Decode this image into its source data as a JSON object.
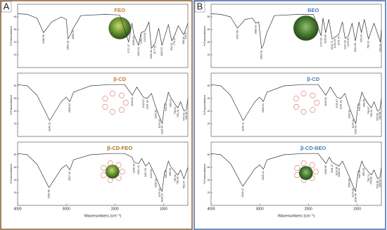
{
  "figure": {
    "panels": [
      {
        "letter": "A",
        "border_color": "#8b5a2b"
      },
      {
        "letter": "B",
        "border_color": "#3f6aa8"
      }
    ]
  },
  "chart_data": [
    {
      "type": "line",
      "title": "FEO",
      "title_color": "#c87a2a",
      "ylabel": "%Transmittance",
      "color": "#333333",
      "xlim": [
        4000,
        500
      ],
      "ylim": [
        0,
        100
      ],
      "yticks": [
        20,
        40,
        60,
        80
      ],
      "x": [
        4000,
        3800,
        3600,
        3466.5,
        3300,
        3100,
        3000,
        2963,
        2925,
        2856,
        2700,
        2200,
        1900,
        1717,
        1650,
        1609,
        1513,
        1462,
        1378,
        1300,
        1250,
        1177,
        1100,
        1032,
        900,
        832,
        775,
        700,
        586,
        545,
        500
      ],
      "values": [
        85,
        84,
        78,
        55,
        72,
        80,
        76,
        45,
        50,
        62,
        82,
        84,
        83,
        40,
        70,
        52,
        35,
        55,
        58,
        72,
        30,
        38,
        62,
        35,
        68,
        42,
        50,
        66,
        52,
        60,
        70
      ],
      "peaks": [
        {
          "value": 3466.5,
          "label": "3466.50"
        },
        {
          "value": 2963.18,
          "label": "2963.18"
        },
        {
          "value": 2856.12,
          "label": "2856.12"
        },
        {
          "value": 1717.37,
          "label": "1717.37"
        },
        {
          "value": 1609.63,
          "label": "1609.63"
        },
        {
          "value": 1513.34,
          "label": "1513.34"
        },
        {
          "value": 1462.43,
          "label": "1462.43"
        },
        {
          "value": 1378.5,
          "label": "1378.50"
        },
        {
          "value": 1250.96,
          "label": "1250.96"
        },
        {
          "value": 1177.02,
          "label": "1177.02"
        },
        {
          "value": 1032.57,
          "label": "1032.57"
        },
        {
          "value": 832.22,
          "label": "832.22"
        },
        {
          "value": 775.23,
          "label": "775.23"
        },
        {
          "value": 586.84,
          "label": "586.84"
        },
        {
          "value": 545.87,
          "label": "545.87"
        }
      ]
    },
    {
      "type": "line",
      "title": "β-CD",
      "title_color": "#c87a2a",
      "ylabel": "%Transmittance",
      "color": "#333333",
      "xlim": [
        4000,
        500
      ],
      "ylim": [
        0,
        100
      ],
      "yticks": [
        20,
        40,
        60,
        80
      ],
      "x": [
        4000,
        3800,
        3600,
        3340.11,
        3100,
        3000,
        2926,
        2850,
        2500,
        2100,
        1800,
        1640.84,
        1550,
        1413.87,
        1334.18,
        1250,
        1153.91,
        1079.25,
        1025.97,
        980,
        945.5,
        900,
        855.67,
        756.67,
        705.26,
        650,
        579.49,
        530.59,
        500
      ],
      "values": [
        82,
        80,
        65,
        25,
        55,
        62,
        55,
        70,
        80,
        82,
        82,
        65,
        78,
        62,
        60,
        68,
        45,
        30,
        20,
        50,
        55,
        70,
        62,
        50,
        45,
        55,
        40,
        42,
        60
      ],
      "peaks": [
        {
          "value": 3340.11,
          "label": "3340.11"
        },
        {
          "value": 2926.04,
          "label": "2926.04"
        },
        {
          "value": 1640.84,
          "label": "1640.84"
        },
        {
          "value": 1413.87,
          "label": "1413.87"
        },
        {
          "value": 1334.18,
          "label": "1334.18"
        },
        {
          "value": 1153.91,
          "label": "1153.91"
        },
        {
          "value": 1079.25,
          "label": "1079.25"
        },
        {
          "value": 1025.97,
          "label": "1025.97"
        },
        {
          "value": 945.5,
          "label": "945.50"
        },
        {
          "value": 855.67,
          "label": "855.67"
        },
        {
          "value": 756.67,
          "label": "756.67"
        },
        {
          "value": 705.26,
          "label": "705.26"
        },
        {
          "value": 579.49,
          "label": "579.49"
        },
        {
          "value": 530.59,
          "label": "530.59"
        }
      ]
    },
    {
      "type": "line",
      "title": "β-CD-FEO",
      "title_color": "#a0781e",
      "ylabel": "%Transmittance",
      "color": "#333333",
      "xlim": [
        4000,
        500
      ],
      "ylim": [
        0,
        100
      ],
      "yticks": [
        20,
        40,
        60,
        80
      ],
      "xticks": [
        4000,
        3000,
        2000,
        1000
      ],
      "xlabel": "Wavenumbers (cm⁻¹)",
      "x": [
        4000,
        3800,
        3600,
        3353.96,
        3100,
        3000,
        2927.1,
        2850,
        2500,
        2100,
        1800,
        1650,
        1605.49,
        1513.44,
        1450,
        1367.53,
        1300,
        1249.05,
        1156.01,
        1079.2,
        1030.61,
        980,
        945.48,
        900,
        859.26,
        756.36,
        706.3,
        650,
        581.67,
        500
      ],
      "values": [
        82,
        80,
        65,
        28,
        58,
        64,
        56,
        72,
        80,
        82,
        82,
        76,
        68,
        66,
        74,
        62,
        68,
        60,
        45,
        30,
        22,
        52,
        58,
        70,
        62,
        52,
        48,
        56,
        42,
        60
      ],
      "peaks": [
        {
          "value": 3353.96,
          "label": "3353.96"
        },
        {
          "value": 2927.1,
          "label": "2927.10"
        },
        {
          "value": 1605.49,
          "label": "1605.49"
        },
        {
          "value": 1513.44,
          "label": "1513.44"
        },
        {
          "value": 1367.53,
          "label": "1367.53"
        },
        {
          "value": 1249.05,
          "label": "1249.05"
        },
        {
          "value": 1156.01,
          "label": "1156.01"
        },
        {
          "value": 1079.2,
          "label": "1079.20"
        },
        {
          "value": 1030.61,
          "label": "1030.61"
        },
        {
          "value": 945.48,
          "label": "945.48"
        },
        {
          "value": 859.26,
          "label": "859.26"
        },
        {
          "value": 756.36,
          "label": "756.36"
        },
        {
          "value": 706.3,
          "label": "706.30"
        },
        {
          "value": 581.67,
          "label": "581.67"
        }
      ]
    },
    {
      "type": "line",
      "title": "BEO",
      "title_color": "#4a7ab8",
      "ylabel": "%Transmittance",
      "color": "#333333",
      "xlim": [
        4000,
        500
      ],
      "ylim": [
        0,
        100
      ],
      "yticks": [
        20,
        40,
        60,
        80
      ],
      "x": [
        4000,
        3800,
        3600,
        3457.5,
        3300,
        3150,
        3080.93,
        3020,
        2963.03,
        2927,
        2856,
        2700,
        2200,
        1900,
        1737.81,
        1700,
        1645.66,
        1580,
        1511.73,
        1453.21,
        1376.7,
        1300,
        1247.03,
        1176.53,
        1100,
        1034.5,
        960,
        910.34,
        850,
        766.91,
        650,
        520.36,
        500
      ],
      "values": [
        85,
        84,
        80,
        62,
        76,
        78,
        70,
        72,
        30,
        35,
        55,
        82,
        84,
        84,
        50,
        78,
        55,
        76,
        45,
        48,
        52,
        72,
        46,
        50,
        70,
        42,
        72,
        55,
        76,
        45,
        70,
        40,
        60
      ],
      "peaks": [
        {
          "value": 3457.5,
          "label": "3457.50"
        },
        {
          "value": 3080.93,
          "label": "3080.93"
        },
        {
          "value": 2963.03,
          "label": "2963.03"
        },
        {
          "value": 1737.81,
          "label": "1737.81"
        },
        {
          "value": 1645.66,
          "label": "1645.66"
        },
        {
          "value": 1511.73,
          "label": "1511.73"
        },
        {
          "value": 1453.21,
          "label": "1453.21"
        },
        {
          "value": 1376.7,
          "label": "1376.70"
        },
        {
          "value": 1247.03,
          "label": "1247.03"
        },
        {
          "value": 1176.53,
          "label": "1176.53"
        },
        {
          "value": 1034.5,
          "label": "1034.50"
        },
        {
          "value": 910.34,
          "label": "910.34"
        },
        {
          "value": 766.91,
          "label": "766.91"
        },
        {
          "value": 520.36,
          "label": "520.36"
        }
      ]
    },
    {
      "type": "line",
      "title": "β-CD",
      "title_color": "#4a7ab8",
      "ylabel": "%Transmittance",
      "color": "#333333",
      "xlim": [
        4000,
        500
      ],
      "ylim": [
        0,
        100
      ],
      "yticks": [
        20,
        40,
        60,
        80
      ],
      "x": [
        4000,
        3800,
        3600,
        3340.11,
        3100,
        3000,
        2926.04,
        2850,
        2500,
        2100,
        1800,
        1640.84,
        1550,
        1413.87,
        1334.18,
        1250,
        1153.91,
        1079.25,
        1025.91,
        980,
        945.5,
        900,
        856.95,
        756.67,
        705.26,
        650,
        579.66,
        530.68,
        500
      ],
      "values": [
        82,
        80,
        65,
        25,
        55,
        62,
        55,
        70,
        80,
        82,
        82,
        65,
        78,
        62,
        60,
        68,
        45,
        30,
        20,
        50,
        55,
        70,
        62,
        50,
        45,
        55,
        40,
        42,
        60
      ],
      "peaks": [
        {
          "value": 3340.11,
          "label": "3340.11"
        },
        {
          "value": 2926.04,
          "label": "2926.04"
        },
        {
          "value": 1640.84,
          "label": "1640.84"
        },
        {
          "value": 1413.87,
          "label": "1413.87"
        },
        {
          "value": 1334.18,
          "label": "1334.18"
        },
        {
          "value": 1153.91,
          "label": "1153.91"
        },
        {
          "value": 1079.25,
          "label": "1079.25"
        },
        {
          "value": 1025.91,
          "label": "1025.91"
        },
        {
          "value": 945.5,
          "label": "945.50"
        },
        {
          "value": 856.95,
          "label": "856.95"
        },
        {
          "value": 756.67,
          "label": "756.67"
        },
        {
          "value": 705.26,
          "label": "705.26"
        },
        {
          "value": 579.66,
          "label": "579.66"
        },
        {
          "value": 530.68,
          "label": "530.68"
        }
      ]
    },
    {
      "type": "line",
      "title": "β-CD-BEO",
      "title_color": "#4a7ab8",
      "ylabel": "%Transmittance",
      "color": "#333333",
      "xlim": [
        4000,
        500
      ],
      "ylim": [
        0,
        100
      ],
      "yticks": [
        20,
        40,
        60,
        80
      ],
      "xticks": [
        4000,
        3000,
        2000,
        1000
      ],
      "xlabel": "Wavenumbers (cm⁻¹)",
      "x": [
        4000,
        3800,
        3600,
        3348.43,
        3100,
        3000,
        2925.42,
        2850,
        2500,
        2100,
        1800,
        1639.69,
        1570,
        1511.37,
        1413.99,
        1368.31,
        1300,
        1156.8,
        1079.89,
        1030.46,
        980,
        946.06,
        900,
        859.25,
        756.74,
        705.68,
        650,
        578.98,
        530.53,
        500
      ],
      "values": [
        82,
        80,
        66,
        30,
        58,
        64,
        57,
        72,
        80,
        82,
        82,
        66,
        76,
        68,
        64,
        62,
        70,
        45,
        30,
        22,
        52,
        58,
        70,
        62,
        52,
        48,
        56,
        42,
        44,
        60
      ],
      "peaks": [
        {
          "value": 3348.43,
          "label": "3348.43"
        },
        {
          "value": 2925.42,
          "label": "2925.42"
        },
        {
          "value": 1639.69,
          "label": "1639.69"
        },
        {
          "value": 1511.37,
          "label": "1511.37"
        },
        {
          "value": 1413.99,
          "label": "1413.99"
        },
        {
          "value": 1368.31,
          "label": "1368.31"
        },
        {
          "value": 1156.8,
          "label": "1156.80"
        },
        {
          "value": 1079.89,
          "label": "1079.89"
        },
        {
          "value": 1030.46,
          "label": "1030.46"
        },
        {
          "value": 946.06,
          "label": "946.06"
        },
        {
          "value": 859.25,
          "label": "859.25"
        },
        {
          "value": 756.74,
          "label": "756.74"
        },
        {
          "value": 705.68,
          "label": "705.68"
        },
        {
          "value": 578.98,
          "label": "578.98"
        },
        {
          "value": 530.53,
          "label": "530.53"
        }
      ]
    }
  ]
}
